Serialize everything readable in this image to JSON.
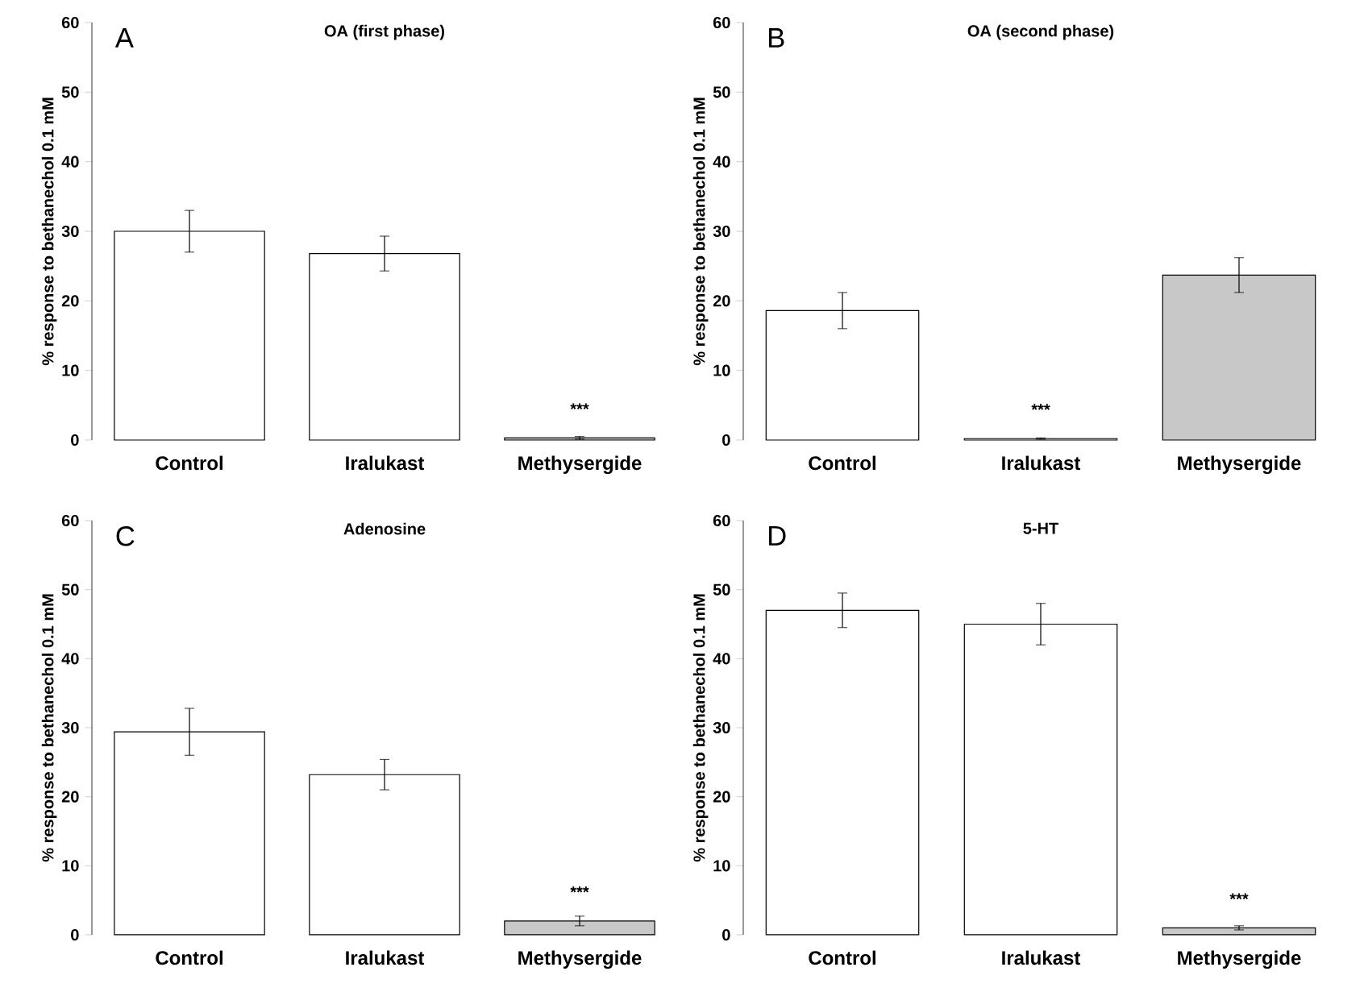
{
  "chart_data": [
    {
      "type": "bar",
      "title": "OA (first phase)",
      "ylabel": "% response to bethanechol 0.1 mM",
      "categories": [
        "Control",
        "Iralukast",
        "Methysergide"
      ],
      "values": [
        30,
        26.8,
        0.3
      ],
      "errors": [
        3,
        2.5,
        0.2
      ],
      "colors": [
        "#ffffff",
        "#ffffff",
        "#c8c8c8"
      ],
      "ylim": [
        0,
        60
      ],
      "yticks": [
        0,
        10,
        20,
        30,
        40,
        50,
        60
      ],
      "annotations": [
        "A",
        {
          "text": "***",
          "x": "Methysergide",
          "y": 0.3
        }
      ]
    },
    {
      "type": "bar",
      "title": "OA (second phase)",
      "ylabel": "% response to bethanechol 0.1 mM",
      "categories": [
        "Control",
        "Iralukast",
        "Methysergide"
      ],
      "values": [
        18.6,
        0.2,
        23.7
      ],
      "errors": [
        2.6,
        0.1,
        2.5
      ],
      "colors": [
        "#ffffff",
        "#ffffff",
        "#c8c8c8"
      ],
      "ylim": [
        0,
        60
      ],
      "yticks": [
        0,
        10,
        20,
        30,
        40,
        50,
        60
      ],
      "annotations": [
        "B",
        {
          "text": "***",
          "x": "Iralukast",
          "y": 0.2
        }
      ]
    },
    {
      "type": "bar",
      "title": "Adenosine",
      "ylabel": "% response to bethanechol 0.1 mM",
      "categories": [
        "Control",
        "Iralukast",
        "Methysergide"
      ],
      "values": [
        29.4,
        23.2,
        2
      ],
      "errors": [
        3.4,
        2.2,
        0.7
      ],
      "colors": [
        "#ffffff",
        "#ffffff",
        "#c8c8c8"
      ],
      "ylim": [
        0,
        60
      ],
      "yticks": [
        0,
        10,
        20,
        30,
        40,
        50,
        60
      ],
      "annotations": [
        "C",
        {
          "text": "***",
          "x": "Methysergide",
          "y": 2
        }
      ]
    },
    {
      "type": "bar",
      "title": "5-HT",
      "ylabel": "% response to bethanechol 0.1 mM",
      "categories": [
        "Control",
        "Iralukast",
        "Methysergide"
      ],
      "values": [
        47,
        45,
        1
      ],
      "errors": [
        2.5,
        3,
        0.3
      ],
      "colors": [
        "#ffffff",
        "#ffffff",
        "#c8c8c8"
      ],
      "ylim": [
        0,
        60
      ],
      "yticks": [
        0,
        10,
        20,
        30,
        40,
        50,
        60
      ],
      "annotations": [
        "D",
        {
          "text": "***",
          "x": "Methysergide",
          "y": 1
        }
      ]
    }
  ]
}
